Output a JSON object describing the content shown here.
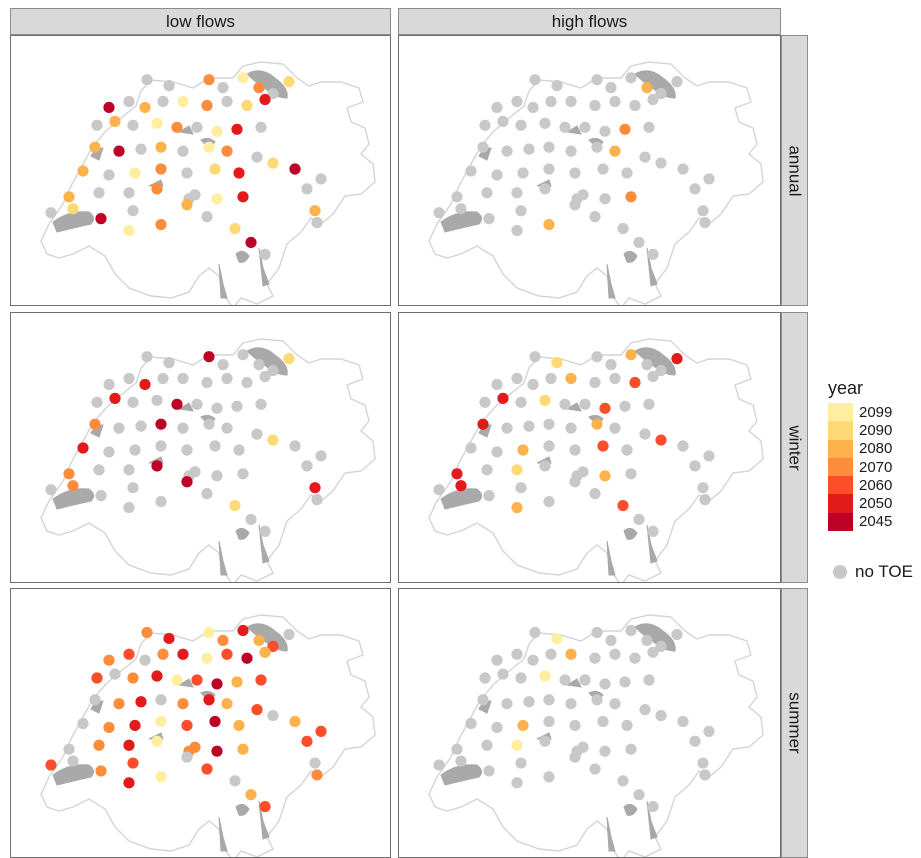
{
  "facets": {
    "columns": [
      "low flows",
      "high flows"
    ],
    "rows": [
      "annual",
      "winter",
      "summer"
    ]
  },
  "legend": {
    "title": "year",
    "items": [
      {
        "label": "2099",
        "color": "#ffeda0"
      },
      {
        "label": "2090",
        "color": "#fed976"
      },
      {
        "label": "2080",
        "color": "#feb24c"
      },
      {
        "label": "2070",
        "color": "#fd8d3c"
      },
      {
        "label": "2060",
        "color": "#fc4e2a"
      },
      {
        "label": "2050",
        "color": "#e31a1c"
      },
      {
        "label": "2045",
        "color": "#bd0026"
      }
    ],
    "no_toe": {
      "label": "no TOE",
      "color": "#c8c8c8"
    }
  },
  "map_colors": {
    "border": "#d4d4d4",
    "lake": "#a9a9a9",
    "no_toe": "#c8c8c8"
  }
}
